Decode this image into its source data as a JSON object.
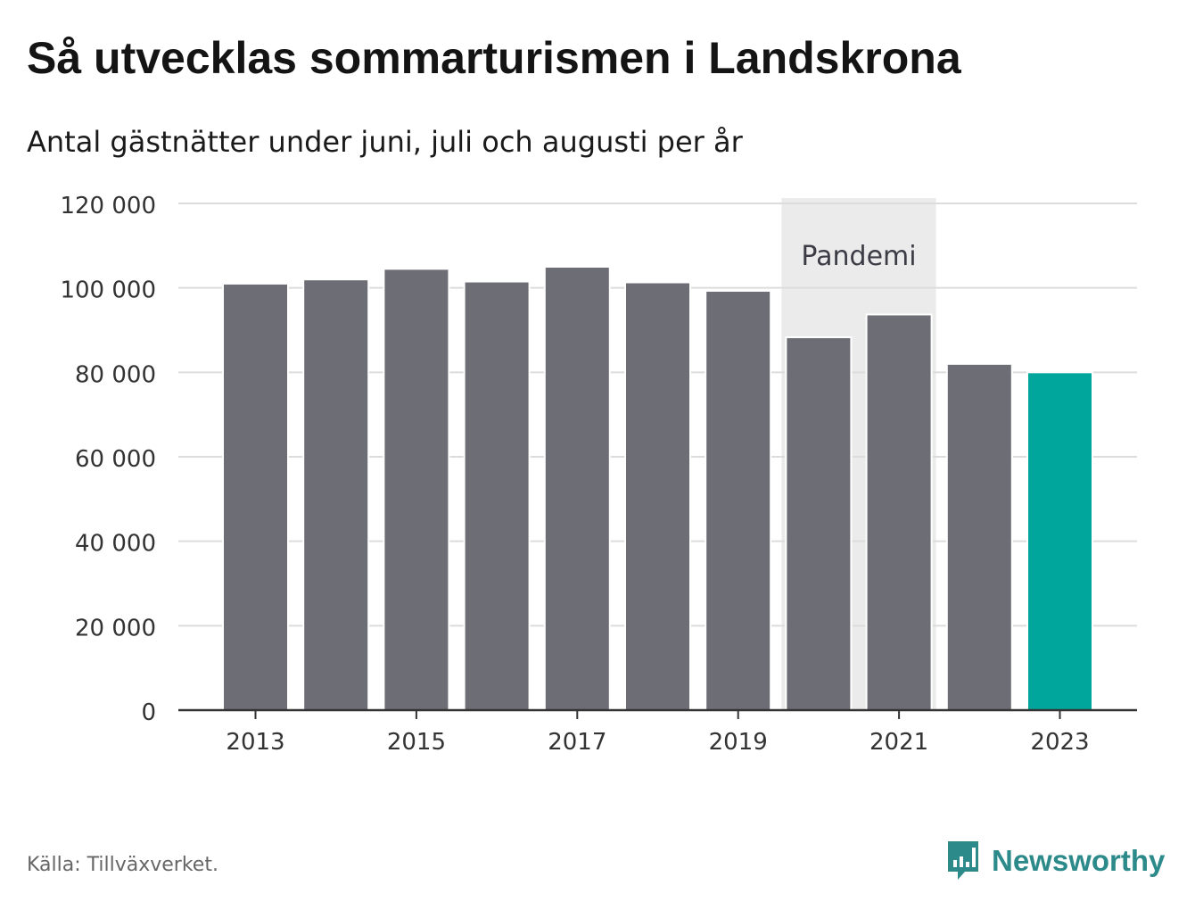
{
  "title": "Så utvecklas sommarturismen i Landskrona",
  "subtitle": "Antal gästnätter under juni, juli och augusti per år",
  "source": "Källa: Tillväxverket.",
  "brand": {
    "name": "Newsworthy",
    "icon": "newsworthy-logo-icon"
  },
  "colors": {
    "bar": "#6d6d75",
    "highlight": "#00a69c",
    "band": "#ebebeb",
    "grid": "#dcdcdc",
    "axis": "#333333",
    "brand": "#2d8a8a"
  },
  "chart_data": {
    "type": "bar",
    "categories": [
      "2013",
      "2014",
      "2015",
      "2016",
      "2017",
      "2018",
      "2019",
      "2020",
      "2021",
      "2022",
      "2023"
    ],
    "values": [
      101000,
      102000,
      104500,
      101500,
      105000,
      101300,
      99300,
      88300,
      93700,
      82000,
      80000
    ],
    "highlight_index": 10,
    "ylim": [
      0,
      120000
    ],
    "yticks": [
      0,
      20000,
      40000,
      60000,
      80000,
      100000,
      120000
    ],
    "ytick_labels": [
      "0",
      "20 000",
      "40 000",
      "60 000",
      "80 000",
      "100 000",
      "120 000"
    ],
    "xtick_labels": [
      "2013",
      "2015",
      "2017",
      "2019",
      "2021",
      "2023"
    ],
    "annotation": {
      "text": "Pandemi",
      "from": "2020",
      "to": "2021"
    },
    "grid": true,
    "legend": false
  }
}
